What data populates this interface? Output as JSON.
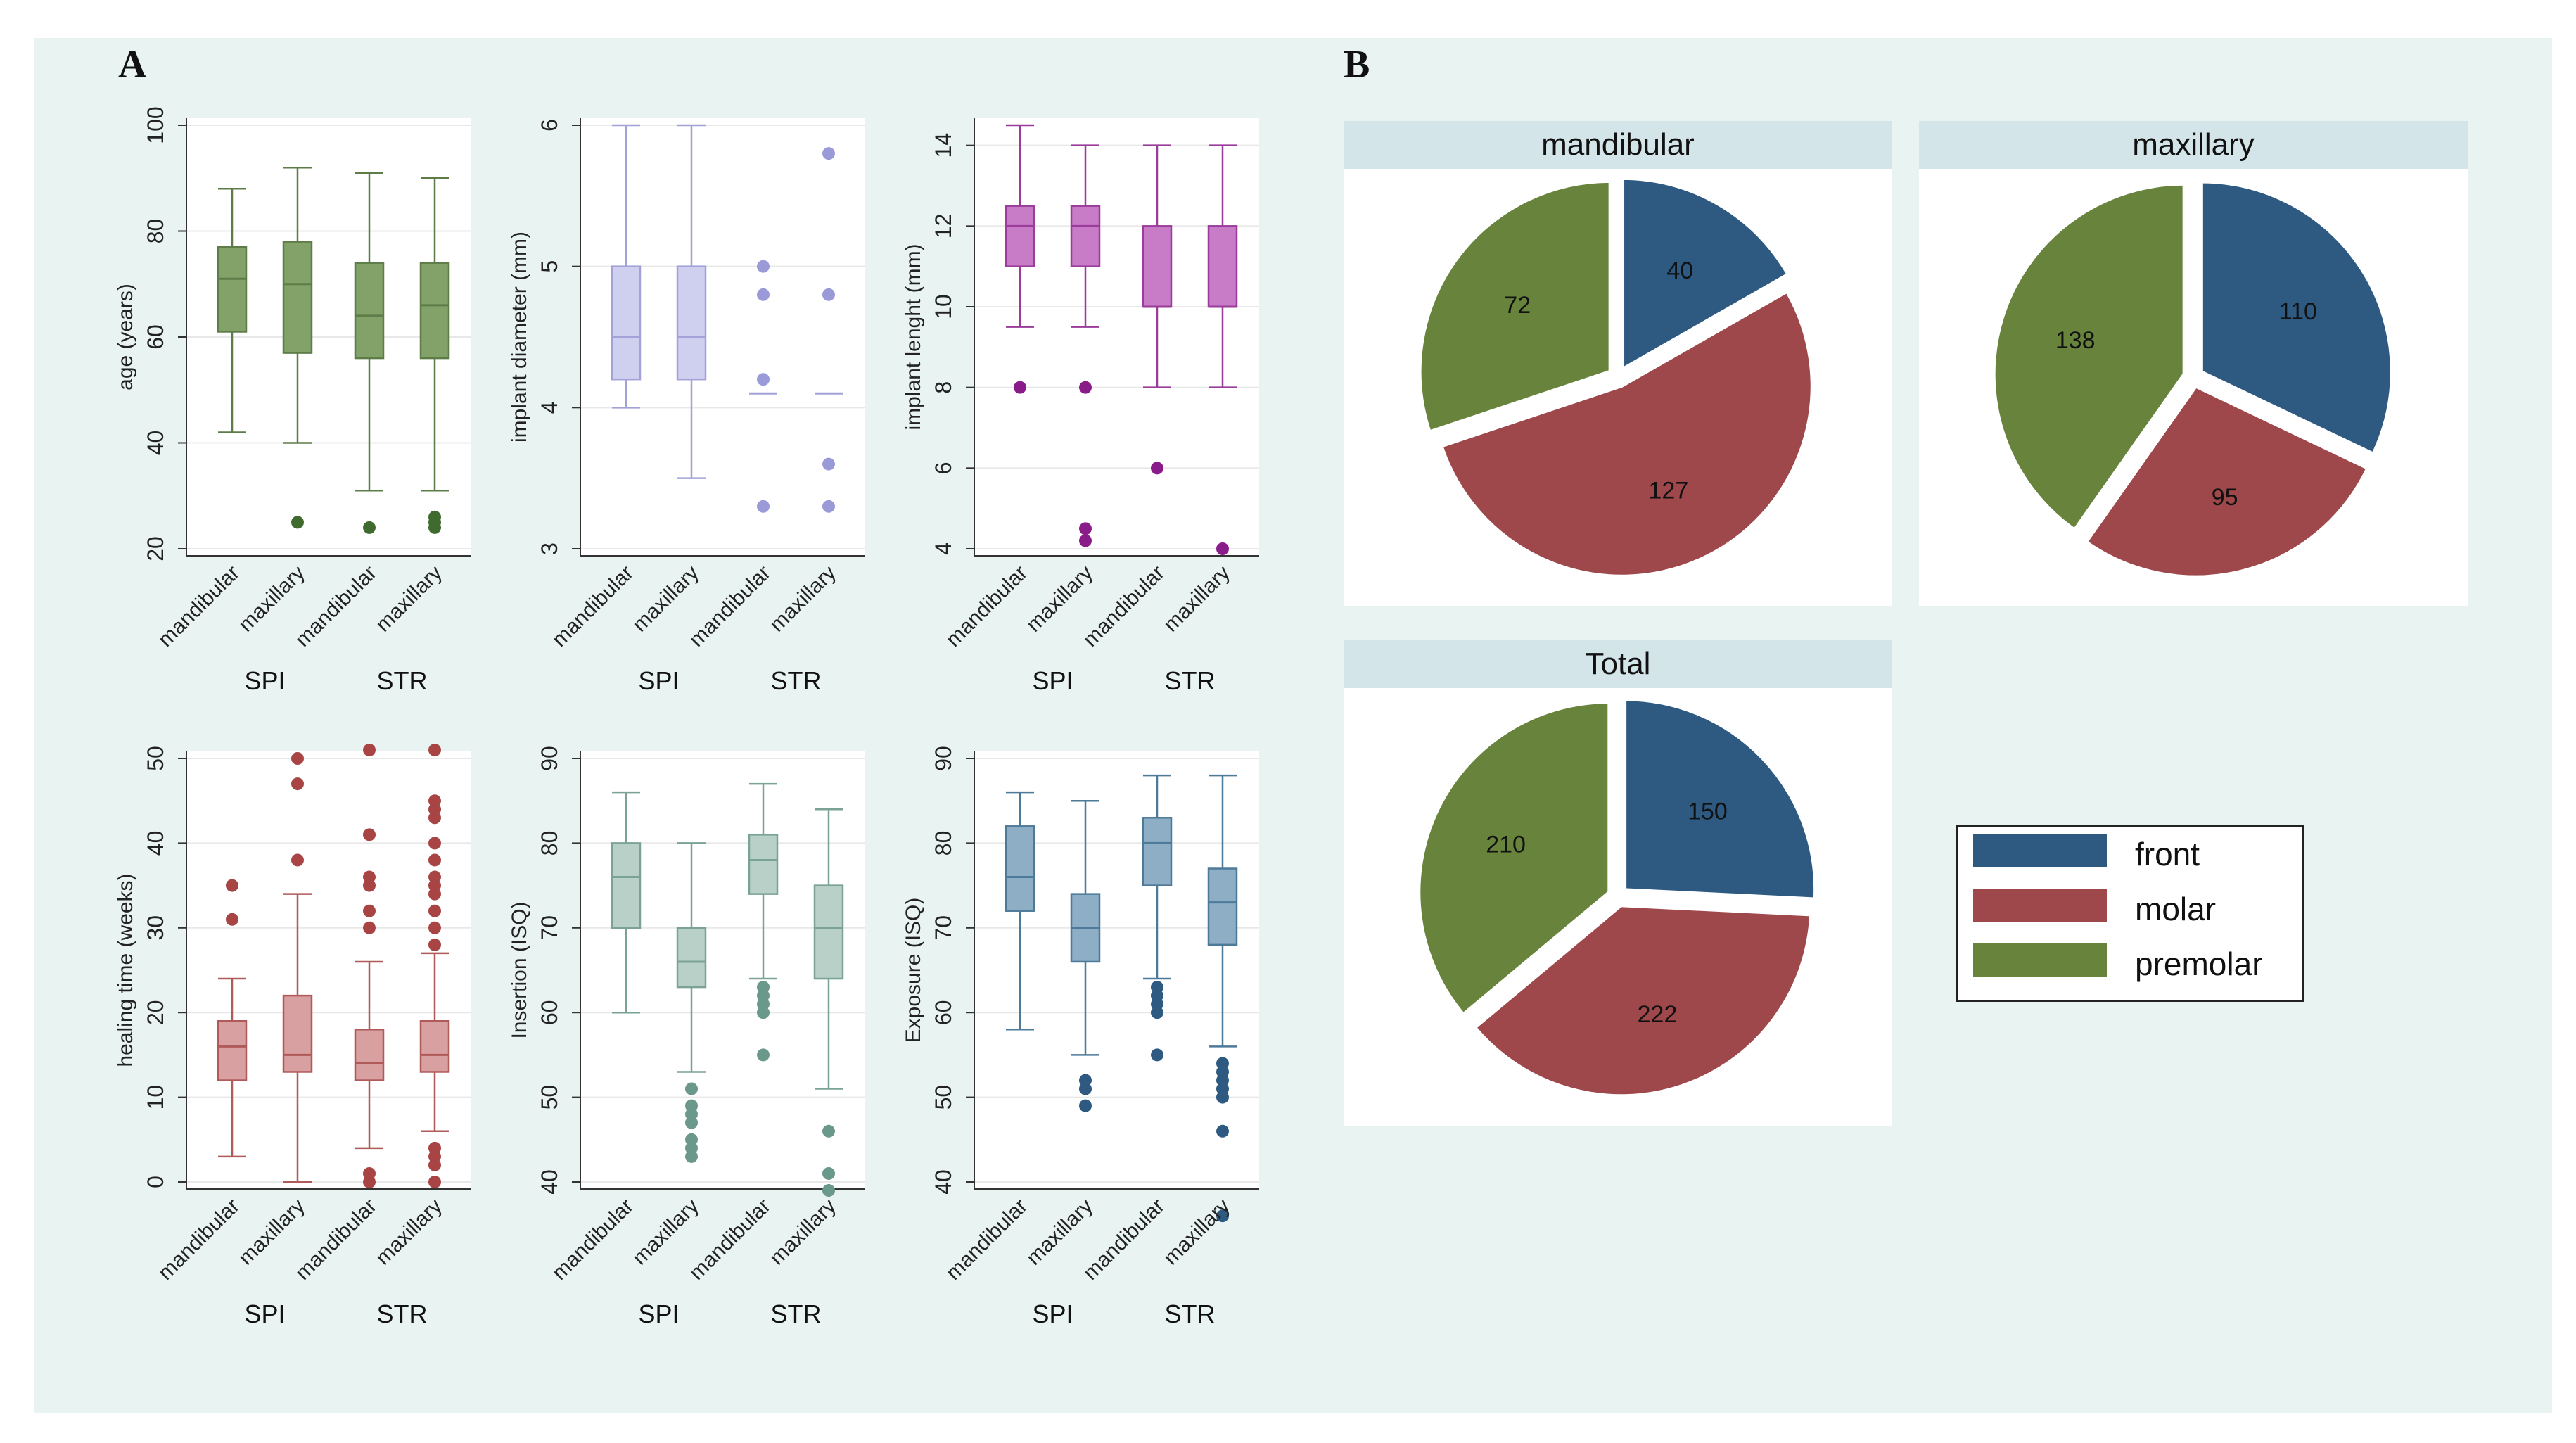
{
  "panels": {
    "a_label": "A",
    "b_label": "B"
  },
  "colors": {
    "front": "#2e5a82",
    "molar": "#9e484c",
    "premolar": "#68843c",
    "age": "#82a26a",
    "diameter": "#b3b3e6",
    "length": "#c47ac4",
    "healing": "#d49494",
    "insertion": "#a8c4bc",
    "exposure": "#7e9fb8"
  },
  "chart_data": [
    {
      "type": "box",
      "id": "age",
      "ylabel": "age (years)",
      "ylim": [
        20,
        100
      ],
      "yticks": [
        20,
        40,
        60,
        80,
        100
      ],
      "ytick_labels": [
        "20",
        "40",
        "60",
        "80",
        "100"
      ],
      "groups": [
        "SPI",
        "STR"
      ],
      "categories": [
        "mandibular",
        "maxillary",
        "mandibular",
        "maxillary"
      ],
      "color": "#82a26a",
      "stroke": "#5d7c48",
      "median_color": "#5d7c48",
      "outlier_color": "#3f6b2f",
      "boxes": [
        {
          "q1": 61,
          "median": 71,
          "q3": 77,
          "whisker_low": 42,
          "whisker_high": 88,
          "outliers": []
        },
        {
          "q1": 57,
          "median": 70,
          "q3": 78,
          "whisker_low": 40,
          "whisker_high": 92,
          "outliers": [
            25
          ]
        },
        {
          "q1": 56,
          "median": 64,
          "q3": 74,
          "whisker_low": 31,
          "whisker_high": 91,
          "outliers": [
            24
          ]
        },
        {
          "q1": 56,
          "median": 66,
          "q3": 74,
          "whisker_low": 31,
          "whisker_high": 90,
          "outliers": [
            24,
            25,
            26
          ]
        }
      ]
    },
    {
      "type": "box",
      "id": "diameter",
      "ylabel": "implant diameter (mm)",
      "ylim": [
        3,
        6
      ],
      "yticks": [
        3,
        4,
        5,
        6
      ],
      "ytick_labels": [
        "3",
        "4",
        "5",
        "6"
      ],
      "groups": [
        "SPI",
        "STR"
      ],
      "categories": [
        "mandibular",
        "maxillary",
        "mandibular",
        "maxillary"
      ],
      "color": "#cfcff0",
      "stroke": "#a2a2d8",
      "median_color": "#a2a2d8",
      "outlier_color": "#9a9ad8",
      "boxes": [
        {
          "q1": 4.2,
          "median": 4.5,
          "q3": 5.0,
          "whisker_low": 4.0,
          "whisker_high": 6.0,
          "outliers": []
        },
        {
          "q1": 4.2,
          "median": 4.5,
          "q3": 5.0,
          "whisker_low": 3.5,
          "whisker_high": 6.0,
          "outliers": []
        },
        {
          "q1": 4.1,
          "median": 4.1,
          "q3": 4.1,
          "whisker_low": 4.1,
          "whisker_high": 4.1,
          "outliers": [
            3.3,
            4.2,
            4.8,
            5.0
          ]
        },
        {
          "q1": 4.1,
          "median": 4.1,
          "q3": 4.1,
          "whisker_low": 4.1,
          "whisker_high": 4.1,
          "outliers": [
            3.3,
            3.6,
            4.8,
            5.8
          ]
        }
      ]
    },
    {
      "type": "box",
      "id": "length",
      "ylabel": "implant lenght (mm)",
      "ylim": [
        4,
        14.5
      ],
      "yticks": [
        4,
        6,
        8,
        10,
        12,
        14
      ],
      "ytick_labels": [
        "4",
        "6",
        "8",
        "10",
        "12",
        "14"
      ],
      "groups": [
        "SPI",
        "STR"
      ],
      "categories": [
        "mandibular",
        "maxillary",
        "mandibular",
        "maxillary"
      ],
      "color": "#c87cc8",
      "stroke": "#9a3c9a",
      "median_color": "#9a3c9a",
      "outlier_color": "#8a1c8a",
      "boxes": [
        {
          "q1": 11,
          "median": 12,
          "q3": 12.5,
          "whisker_low": 9.5,
          "whisker_high": 14.5,
          "outliers": [
            8
          ]
        },
        {
          "q1": 11,
          "median": 12,
          "q3": 12.5,
          "whisker_low": 9.5,
          "whisker_high": 14,
          "outliers": [
            4.2,
            4.5,
            8
          ]
        },
        {
          "q1": 10,
          "median": 10,
          "q3": 12,
          "whisker_low": 8,
          "whisker_high": 14,
          "outliers": [
            6
          ]
        },
        {
          "q1": 10,
          "median": 10,
          "q3": 12,
          "whisker_low": 8,
          "whisker_high": 14,
          "outliers": [
            4
          ]
        }
      ]
    },
    {
      "type": "box",
      "id": "healing",
      "ylabel": "healing time (weeks)",
      "ylim": [
        0,
        50
      ],
      "yticks": [
        0,
        10,
        20,
        30,
        40,
        50
      ],
      "ytick_labels": [
        "0",
        "10",
        "20",
        "30",
        "40",
        "50"
      ],
      "groups": [
        "SPI",
        "STR"
      ],
      "categories": [
        "mandibular",
        "maxillary",
        "mandibular",
        "maxillary"
      ],
      "color": "#d8a0a0",
      "stroke": "#b05a5a",
      "median_color": "#b05a5a",
      "outlier_color": "#a84444",
      "boxes": [
        {
          "q1": 12,
          "median": 16,
          "q3": 19,
          "whisker_low": 3,
          "whisker_high": 24,
          "outliers": [
            31,
            35
          ]
        },
        {
          "q1": 13,
          "median": 15,
          "q3": 22,
          "whisker_low": 0,
          "whisker_high": 34,
          "outliers": [
            38,
            47,
            50
          ]
        },
        {
          "q1": 12,
          "median": 14,
          "q3": 18,
          "whisker_low": 4,
          "whisker_high": 26,
          "outliers": [
            0,
            1,
            30,
            32,
            35,
            36,
            41,
            51
          ]
        },
        {
          "q1": 13,
          "median": 15,
          "q3": 19,
          "whisker_low": 6,
          "whisker_high": 27,
          "outliers": [
            0,
            2,
            3,
            4,
            28,
            30,
            32,
            34,
            35,
            36,
            38,
            40,
            43,
            44,
            45,
            51
          ]
        }
      ]
    },
    {
      "type": "box",
      "id": "insertion",
      "ylabel": "Insertion (ISQ)",
      "ylim": [
        40,
        90
      ],
      "yticks": [
        40,
        50,
        60,
        70,
        80,
        90
      ],
      "ytick_labels": [
        "40",
        "50",
        "60",
        "70",
        "80",
        "90"
      ],
      "groups": [
        "SPI",
        "STR"
      ],
      "categories": [
        "mandibular",
        "maxillary",
        "mandibular",
        "maxillary"
      ],
      "color": "#b8d0c8",
      "stroke": "#7aa296",
      "median_color": "#7aa296",
      "outlier_color": "#6a988a",
      "boxes": [
        {
          "q1": 70,
          "median": 76,
          "q3": 80,
          "whisker_low": 60,
          "whisker_high": 86,
          "outliers": []
        },
        {
          "q1": 63,
          "median": 66,
          "q3": 70,
          "whisker_low": 53,
          "whisker_high": 80,
          "outliers": [
            43,
            44,
            45,
            47,
            48,
            49,
            51
          ]
        },
        {
          "q1": 74,
          "median": 78,
          "q3": 81,
          "whisker_low": 64,
          "whisker_high": 87,
          "outliers": [
            55,
            60,
            61,
            62,
            63
          ]
        },
        {
          "q1": 64,
          "median": 70,
          "q3": 75,
          "whisker_low": 51,
          "whisker_high": 84,
          "outliers": [
            39,
            41,
            46
          ]
        }
      ]
    },
    {
      "type": "box",
      "id": "exposure",
      "ylabel": "Exposure (ISQ)",
      "ylim": [
        40,
        90
      ],
      "yticks": [
        40,
        50,
        60,
        70,
        80,
        90
      ],
      "ytick_labels": [
        "40",
        "50",
        "60",
        "70",
        "80",
        "90"
      ],
      "groups": [
        "SPI",
        "STR"
      ],
      "categories": [
        "mandibular",
        "maxillary",
        "mandibular",
        "maxillary"
      ],
      "color": "#8eaec6",
      "stroke": "#4e7a9a",
      "median_color": "#4e7a9a",
      "outlier_color": "#2e5a82",
      "boxes": [
        {
          "q1": 72,
          "median": 76,
          "q3": 82,
          "whisker_low": 58,
          "whisker_high": 86,
          "outliers": []
        },
        {
          "q1": 66,
          "median": 70,
          "q3": 74,
          "whisker_low": 55,
          "whisker_high": 85,
          "outliers": [
            49,
            51,
            52
          ]
        },
        {
          "q1": 75,
          "median": 80,
          "q3": 83,
          "whisker_low": 64,
          "whisker_high": 88,
          "outliers": [
            55,
            60,
            61,
            62,
            63
          ]
        },
        {
          "q1": 68,
          "median": 73,
          "q3": 77,
          "whisker_low": 56,
          "whisker_high": 88,
          "outliers": [
            36,
            46,
            50,
            51,
            52,
            53,
            54
          ]
        }
      ]
    },
    {
      "type": "pie",
      "id": "mandibular",
      "title": "mandibular",
      "slices": [
        {
          "label": "front",
          "value": 40
        },
        {
          "label": "molar",
          "value": 127
        },
        {
          "label": "premolar",
          "value": 72
        }
      ]
    },
    {
      "type": "pie",
      "id": "maxillary",
      "title": "maxillary",
      "slices": [
        {
          "label": "front",
          "value": 110
        },
        {
          "label": "molar",
          "value": 95
        },
        {
          "label": "premolar",
          "value": 138
        }
      ]
    },
    {
      "type": "pie",
      "id": "total",
      "title": "Total",
      "slices": [
        {
          "label": "front",
          "value": 150
        },
        {
          "label": "molar",
          "value": 222
        },
        {
          "label": "premolar",
          "value": 210
        }
      ]
    }
  ],
  "legend": {
    "items": [
      {
        "label": "front",
        "color": "#2e5a82"
      },
      {
        "label": "molar",
        "color": "#9e484c"
      },
      {
        "label": "premolar",
        "color": "#68843c"
      }
    ]
  }
}
